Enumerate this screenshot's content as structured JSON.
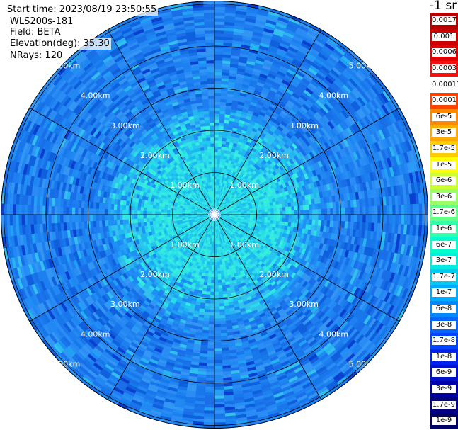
{
  "info": {
    "start_time": "Start time: 2023/08/19 23:50:55",
    "instrument": "WLS200s-181",
    "field": "Field: BETA",
    "elevation": "Elevation(deg): 35.30",
    "nrays": "NRays: 120"
  },
  "range_rings": {
    "labels": [
      "1.00km",
      "2.00km",
      "3.00km",
      "4.00km",
      "5.00km"
    ]
  },
  "colorbar": {
    "unit": "-1 sr",
    "segments": [
      {
        "label": "0.0017",
        "color": "#b40000"
      },
      {
        "label": "0.001",
        "color": "#cc0000"
      },
      {
        "label": "0.0006",
        "color": "#e00000"
      },
      {
        "label": "0.0003",
        "color": "#f51010"
      },
      {
        "label": "0.00017",
        "color": "#ffffff"
      },
      {
        "label": "0.0001",
        "color": "#ff4400"
      },
      {
        "label": "6e-5",
        "color": "#ff8800"
      },
      {
        "label": "3e-5",
        "color": "#ffaa00"
      },
      {
        "label": "1.7e-5",
        "color": "#ffcc00"
      },
      {
        "label": "1e-5",
        "color": "#ffff00"
      },
      {
        "label": "6e-6",
        "color": "#ccff33"
      },
      {
        "label": "3e-6",
        "color": "#99ff66"
      },
      {
        "label": "1.7e-6",
        "color": "#66ff88"
      },
      {
        "label": "1e-6",
        "color": "#33ffaa"
      },
      {
        "label": "6e-7",
        "color": "#00ffcc"
      },
      {
        "label": "3e-7",
        "color": "#00eedd"
      },
      {
        "label": "1.7e-7",
        "color": "#00ccee"
      },
      {
        "label": "1e-7",
        "color": "#00aaff"
      },
      {
        "label": "6e-8",
        "color": "#0088ff"
      },
      {
        "label": "3e-8",
        "color": "#0066ff"
      },
      {
        "label": "1.7e-8",
        "color": "#0044ff"
      },
      {
        "label": "1e-8",
        "color": "#0022ee"
      },
      {
        "label": "6e-9",
        "color": "#0011cc"
      },
      {
        "label": "3e-9",
        "color": "#0000aa"
      },
      {
        "label": "1.7e-9",
        "color": "#000088"
      },
      {
        "label": "1e-9",
        "color": "#000066"
      }
    ]
  }
}
